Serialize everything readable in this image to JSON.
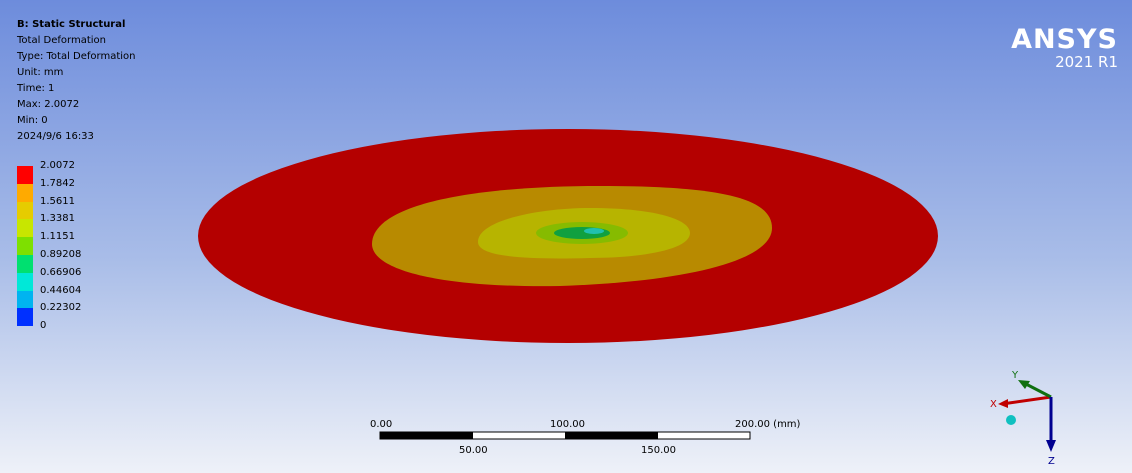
{
  "header": {
    "title": "B: Static Structural",
    "lines": [
      "Total Deformation",
      "Type: Total Deformation",
      "Unit: mm",
      "Time: 1",
      "Max: 2.0072",
      "Min: 0",
      "2024/9/6 16:33"
    ]
  },
  "legend": {
    "labels": [
      "2.0072",
      "1.7842",
      "1.5611",
      "1.3381",
      "1.1151",
      "0.89208",
      "0.66906",
      "0.44604",
      "0.22302",
      "0"
    ]
  },
  "logo": {
    "brand": "ANSYS",
    "version": "2021 R1"
  },
  "scale_bar": {
    "top_labels": [
      "0.00",
      "100.00",
      "200.00 (mm)"
    ],
    "bottom_labels": [
      "50.00",
      "150.00"
    ]
  },
  "triad": {
    "x": "X",
    "y": "Y",
    "z": "Z"
  }
}
